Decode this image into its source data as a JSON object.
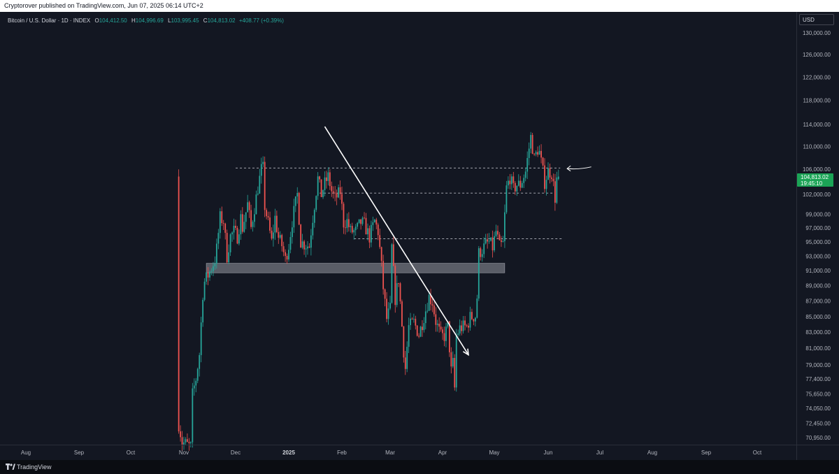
{
  "header": {
    "publisher": "Cryptorover published on TradingView.com, Jun 07, 2025 06:14 UTC+2"
  },
  "legend": {
    "symbol": "Bitcoin / U.S. Dollar · 1D · INDEX",
    "open_key": "O",
    "open": "104,412.50",
    "high_key": "H",
    "high": "104,996.69",
    "low_key": "L",
    "low": "103,995.45",
    "close_key": "C",
    "close": "104,813.02",
    "change": "+408.77 (+0.39%)"
  },
  "currency": "USD",
  "price_tag": {
    "price": "104,813.02",
    "countdown": "19:45:10"
  },
  "footer": {
    "brand": "TradingView"
  },
  "colors": {
    "up": "#26a69a",
    "down": "#ef5350",
    "background": "#131722",
    "tag": "#1ba456"
  },
  "chart_data": {
    "type": "candlestick",
    "y_ticks": [
      "130,000.00",
      "126,000.00",
      "122,000.00",
      "118,000.00",
      "114,000.00",
      "110,000.00",
      "106,000.00",
      "102,000.00",
      "99,000.00",
      "97,000.00",
      "95,000.00",
      "93,000.00",
      "91,000.00",
      "89,000.00",
      "87,000.00",
      "85,000.00",
      "83,000.00",
      "81,000.00",
      "79,000.00",
      "77,400.00",
      "75,650.00",
      "74,050.00",
      "72,450.00",
      "70,950.00"
    ],
    "x_ticks": [
      "Aug",
      "Sep",
      "Oct",
      "Nov",
      "Dec",
      "2025",
      "Feb",
      "Mar",
      "Apr",
      "May",
      "Jun",
      "Jul",
      "Aug",
      "Sep",
      "Oct"
    ],
    "y_scale": "log",
    "price_anchors": [
      [
        130000,
        47
      ],
      [
        114000,
        178
      ],
      [
        106000,
        242
      ],
      [
        102000,
        278
      ],
      [
        95000,
        346
      ],
      [
        91000,
        387
      ],
      [
        85000,
        453
      ],
      [
        81000,
        498
      ],
      [
        77400,
        542
      ],
      [
        74050,
        584
      ],
      [
        70950,
        626
      ]
    ],
    "date_anchors": [
      [
        "2024-08-01",
        37
      ],
      [
        "2024-09-01",
        113
      ],
      [
        "2024-10-01",
        187
      ],
      [
        "2024-11-01",
        263
      ],
      [
        "2024-12-01",
        337
      ],
      [
        "2025-01-01",
        413
      ],
      [
        "2025-02-01",
        489
      ],
      [
        "2025-03-01",
        558
      ],
      [
        "2025-04-01",
        633
      ],
      [
        "2025-05-01",
        707
      ],
      [
        "2025-06-01",
        784
      ],
      [
        "2025-07-01",
        858
      ],
      [
        "2025-08-01",
        933
      ],
      [
        "2025-09-01",
        1010
      ],
      [
        "2025-10-01",
        1083
      ]
    ],
    "x_tick_dates": [
      "2024-08-01",
      "2024-09-01",
      "2024-10-01",
      "2024-11-01",
      "2024-12-01",
      "2025-01-01",
      "2025-02-01",
      "2025-03-01",
      "2025-04-01",
      "2025-05-01",
      "2025-06-01",
      "2025-07-01",
      "2025-08-01",
      "2025-09-01",
      "2025-10-01"
    ],
    "closes": [
      [
        "2024-10-29",
        72400
      ],
      [
        "2024-10-31",
        70500
      ],
      [
        "2024-11-05",
        70000
      ],
      [
        "2024-11-06",
        75600
      ],
      [
        "2024-11-08",
        77400
      ],
      [
        "2024-11-10",
        80300
      ],
      [
        "2024-11-12",
        88000
      ],
      [
        "2024-11-13",
        89500
      ],
      [
        "2024-11-16",
        90800
      ],
      [
        "2024-11-19",
        92500
      ],
      [
        "2024-11-20",
        94000
      ],
      [
        "2024-11-22",
        98500
      ],
      [
        "2024-11-24",
        98000
      ],
      [
        "2024-11-26",
        93000
      ],
      [
        "2024-11-28",
        95800
      ],
      [
        "2024-11-30",
        96500
      ],
      [
        "2024-12-02",
        95800
      ],
      [
        "2024-12-04",
        98500
      ],
      [
        "2024-12-05",
        97000
      ],
      [
        "2024-12-08",
        100500
      ],
      [
        "2024-12-10",
        97000
      ],
      [
        "2024-12-13",
        101500
      ],
      [
        "2024-12-16",
        106000
      ],
      [
        "2024-12-17",
        106200
      ],
      [
        "2024-12-18",
        100200
      ],
      [
        "2024-12-20",
        97700
      ],
      [
        "2024-12-22",
        95000
      ],
      [
        "2024-12-24",
        98500
      ],
      [
        "2024-12-26",
        95600
      ],
      [
        "2024-12-28",
        94500
      ],
      [
        "2024-12-30",
        92500
      ],
      [
        "2025-01-01",
        94500
      ],
      [
        "2025-01-03",
        98000
      ],
      [
        "2025-01-06",
        102000
      ],
      [
        "2025-01-08",
        95000
      ],
      [
        "2025-01-10",
        94700
      ],
      [
        "2025-01-13",
        94400
      ],
      [
        "2025-01-14",
        96500
      ],
      [
        "2025-01-16",
        100500
      ],
      [
        "2025-01-18",
        104500
      ],
      [
        "2025-01-20",
        102000
      ],
      [
        "2025-01-22",
        103700
      ],
      [
        "2025-01-24",
        104800
      ],
      [
        "2025-01-26",
        102500
      ],
      [
        "2025-01-28",
        101300
      ],
      [
        "2025-01-31",
        102400
      ],
      [
        "2025-02-02",
        97700
      ],
      [
        "2025-02-04",
        98000
      ],
      [
        "2025-02-06",
        96500
      ],
      [
        "2025-02-09",
        96500
      ],
      [
        "2025-02-12",
        97800
      ],
      [
        "2025-02-14",
        97500
      ],
      [
        "2025-02-17",
        95700
      ],
      [
        "2025-02-20",
        98000
      ],
      [
        "2025-02-22",
        96500
      ],
      [
        "2025-02-24",
        91500
      ],
      [
        "2025-02-25",
        88700
      ],
      [
        "2025-02-27",
        84700
      ],
      [
        "2025-03-01",
        86000
      ],
      [
        "2025-03-02",
        94200
      ],
      [
        "2025-03-04",
        87300
      ],
      [
        "2025-03-06",
        89900
      ],
      [
        "2025-03-09",
        80700
      ],
      [
        "2025-03-10",
        78600
      ],
      [
        "2025-03-12",
        83700
      ],
      [
        "2025-03-15",
        84300
      ],
      [
        "2025-03-18",
        82700
      ],
      [
        "2025-03-20",
        84200
      ],
      [
        "2025-03-24",
        87500
      ],
      [
        "2025-03-26",
        86900
      ],
      [
        "2025-03-28",
        84400
      ],
      [
        "2025-03-31",
        82500
      ],
      [
        "2025-04-02",
        82500
      ],
      [
        "2025-04-04",
        83800
      ],
      [
        "2025-04-06",
        78300
      ],
      [
        "2025-04-07",
        79200
      ],
      [
        "2025-04-08",
        76300
      ],
      [
        "2025-04-09",
        82600
      ],
      [
        "2025-04-11",
        83500
      ],
      [
        "2025-04-13",
        83700
      ],
      [
        "2025-04-15",
        83700
      ],
      [
        "2025-04-17",
        84900
      ],
      [
        "2025-04-20",
        85100
      ],
      [
        "2025-04-21",
        87500
      ],
      [
        "2025-04-22",
        93400
      ],
      [
        "2025-04-24",
        93900
      ],
      [
        "2025-04-26",
        94600
      ],
      [
        "2025-04-28",
        95000
      ],
      [
        "2025-04-30",
        94200
      ],
      [
        "2025-05-02",
        96500
      ],
      [
        "2025-05-04",
        94300
      ],
      [
        "2025-05-06",
        94700
      ],
      [
        "2025-05-08",
        103000
      ],
      [
        "2025-05-10",
        104700
      ],
      [
        "2025-05-12",
        102800
      ],
      [
        "2025-05-14",
        103500
      ],
      [
        "2025-05-16",
        103500
      ],
      [
        "2025-05-19",
        105600
      ],
      [
        "2025-05-21",
        109700
      ],
      [
        "2025-05-22",
        111700
      ],
      [
        "2025-05-24",
        107800
      ],
      [
        "2025-05-26",
        109400
      ],
      [
        "2025-05-27",
        108900
      ],
      [
        "2025-05-29",
        105600
      ],
      [
        "2025-05-30",
        103900
      ],
      [
        "2025-06-01",
        105700
      ],
      [
        "2025-06-03",
        105400
      ],
      [
        "2025-06-05",
        101500
      ],
      [
        "2025-06-06",
        104400
      ],
      [
        "2025-06-07",
        104813
      ]
    ],
    "horizontal_levels": [
      {
        "style": "dashed",
        "price": 106200,
        "from": "2024-12-01",
        "to": "2025-06-08"
      },
      {
        "style": "dashed",
        "price": 102200,
        "from": "2025-01-19",
        "to": "2025-06-05"
      },
      {
        "style": "dashed",
        "price": 95450,
        "from": "2025-02-08",
        "to": "2025-06-09"
      }
    ],
    "zone": {
      "price_top": 92000,
      "price_bottom": 90700,
      "from": "2024-11-14",
      "to": "2025-05-07"
    },
    "trendline": {
      "from": [
        "2025-01-22",
        113600
      ],
      "to": [
        "2025-04-16",
        80200
      ]
    },
    "pointer_arrow": {
      "from": [
        "2025-06-26",
        106400
      ],
      "to": [
        "2025-06-12",
        106100
      ]
    }
  }
}
